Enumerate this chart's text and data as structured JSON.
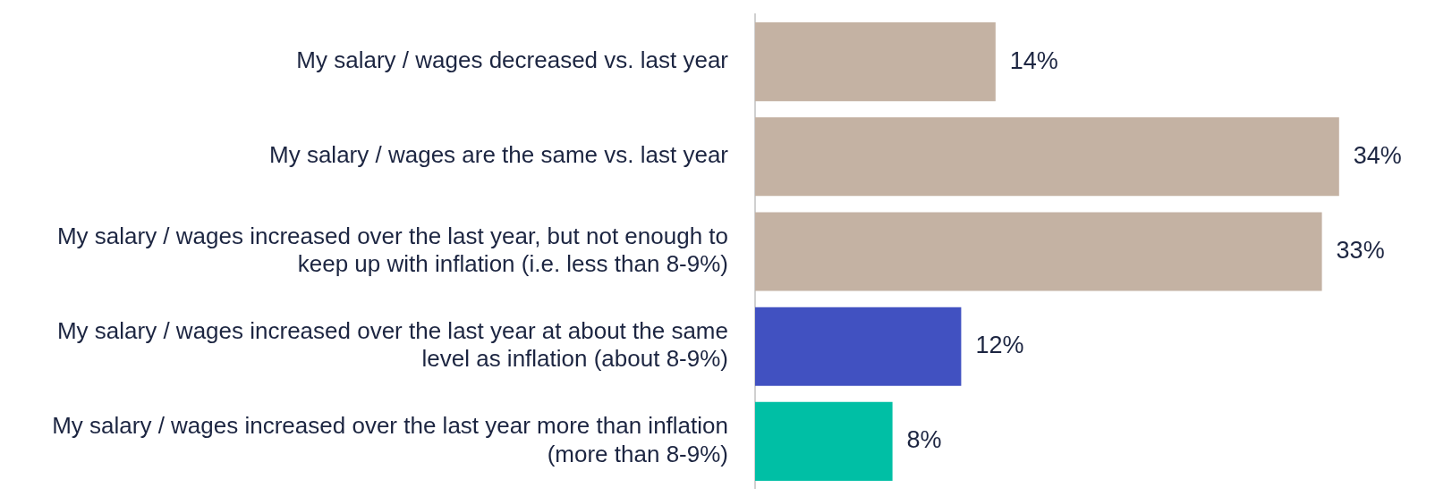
{
  "chart_data": {
    "type": "bar",
    "orientation": "horizontal",
    "categories": [
      "My salary / wages decreased vs. last year",
      "My salary / wages are the same vs. last year",
      "My salary / wages increased over the last year, but not enough to keep up with inflation (i.e. less than 8-9%)",
      "My salary / wages increased over the last year at about the same level as inflation (about 8-9%)",
      "My salary / wages increased over the last year more than inflation (more than 8-9%)"
    ],
    "values": [
      14,
      34,
      33,
      12,
      8
    ],
    "colors": [
      "#c4b2a3",
      "#c4b2a3",
      "#c4b2a3",
      "#4151c1",
      "#00bfa5"
    ],
    "value_labels": [
      "14%",
      "34%",
      "33%",
      "12%",
      "8%"
    ],
    "legend": false
  }
}
